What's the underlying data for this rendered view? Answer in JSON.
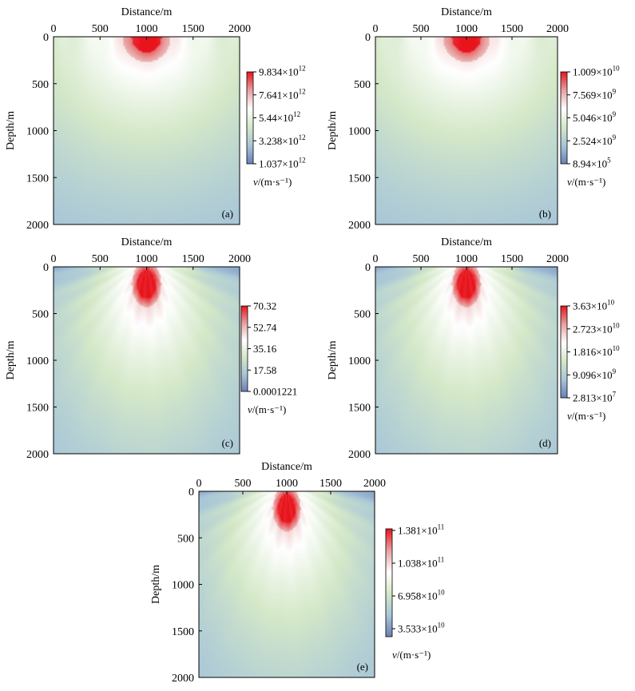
{
  "chart_data": [
    {
      "type": "heatmap",
      "xlabel": "Distance/m",
      "ylabel": "Depth/m",
      "x_ticks": [
        "0",
        "500",
        "1000",
        "1500",
        "2000"
      ],
      "y_ticks": [
        "0",
        "500",
        "1000",
        "1500",
        "2000"
      ],
      "xlim": [
        0,
        2000
      ],
      "ylim": [
        0,
        2000
      ],
      "panel_label": "(a)",
      "colorbar_label": "v/(m·s⁻¹)",
      "colorbar": {
        "ticks": [
          {
            "man": "9.834×10",
            "exp": "12",
            "value": 9834000000000.0
          },
          {
            "man": "7.641×10",
            "exp": "12",
            "value": 7641000000000.0
          },
          {
            "man": "5.44×10",
            "exp": "12",
            "value": 5440000000000.0
          },
          {
            "man": "3.238×10",
            "exp": "12",
            "value": 3238000000000.0
          },
          {
            "man": "1.037×10",
            "exp": "12",
            "value": 1037000000000.0
          }
        ]
      },
      "source": {
        "x": 1000,
        "depth": 0,
        "shape": "shallow"
      }
    },
    {
      "type": "heatmap",
      "xlabel": "Distance/m",
      "ylabel": "Depth/m",
      "x_ticks": [
        "0",
        "500",
        "1000",
        "1500",
        "2000"
      ],
      "y_ticks": [
        "0",
        "500",
        "1000",
        "1500",
        "2000"
      ],
      "xlim": [
        0,
        2000
      ],
      "ylim": [
        0,
        2000
      ],
      "panel_label": "(b)",
      "colorbar_label": "v/(m·s⁻¹)",
      "colorbar": {
        "ticks": [
          {
            "man": "1.009×10",
            "exp": "10",
            "value": 10090000000.0
          },
          {
            "man": "7.569×10",
            "exp": "9",
            "value": 7569000000.0
          },
          {
            "man": "5.046×10",
            "exp": "9",
            "value": 5046000000.0
          },
          {
            "man": "2.524×10",
            "exp": "9",
            "value": 2524000000.0
          },
          {
            "man": "8.94×10",
            "exp": "5",
            "value": 894000.0
          }
        ]
      },
      "source": {
        "x": 1000,
        "depth": 0,
        "shape": "shallow"
      }
    },
    {
      "type": "heatmap",
      "xlabel": "Distance/m",
      "ylabel": "Depth/m",
      "x_ticks": [
        "0",
        "500",
        "1000",
        "1500",
        "2000"
      ],
      "y_ticks": [
        "0",
        "500",
        "1000",
        "1500",
        "2000"
      ],
      "xlim": [
        0,
        2000
      ],
      "ylim": [
        0,
        2000
      ],
      "panel_label": "(c)",
      "colorbar_label": "v/(m·s⁻¹)",
      "colorbar": {
        "ticks": [
          {
            "man": "70.32",
            "exp": "",
            "value": 70.32
          },
          {
            "man": "52.74",
            "exp": "",
            "value": 52.74
          },
          {
            "man": "35.16",
            "exp": "",
            "value": 35.16
          },
          {
            "man": "17.58",
            "exp": "",
            "value": 17.58
          },
          {
            "man": "0.0001221",
            "exp": "",
            "value": 0.0001221
          }
        ]
      },
      "source": {
        "x": 1000,
        "depth": 200,
        "shape": "deep"
      }
    },
    {
      "type": "heatmap",
      "xlabel": "Distance/m",
      "ylabel": "Depth/m",
      "x_ticks": [
        "0",
        "500",
        "1000",
        "1500",
        "2000"
      ],
      "y_ticks": [
        "0",
        "500",
        "1000",
        "1500",
        "2000"
      ],
      "xlim": [
        0,
        2000
      ],
      "ylim": [
        0,
        2000
      ],
      "panel_label": "(d)",
      "colorbar_label": "v/(m·s⁻¹)",
      "colorbar": {
        "ticks": [
          {
            "man": "3.63×10",
            "exp": "10",
            "value": 36300000000.0
          },
          {
            "man": "2.723×10",
            "exp": "10",
            "value": 27230000000.0
          },
          {
            "man": "1.816×10",
            "exp": "10",
            "value": 18160000000.0
          },
          {
            "man": "9.096×10",
            "exp": "9",
            "value": 9096000000.0
          },
          {
            "man": "2.813×10",
            "exp": "7",
            "value": 28130000.0
          }
        ]
      },
      "source": {
        "x": 1000,
        "depth": 200,
        "shape": "deep"
      }
    },
    {
      "type": "heatmap",
      "xlabel": "Distance/m",
      "ylabel": "Depth/m",
      "x_ticks": [
        "0",
        "500",
        "1000",
        "1500",
        "2000"
      ],
      "y_ticks": [
        "0",
        "500",
        "1000",
        "1500",
        "2000"
      ],
      "xlim": [
        0,
        2000
      ],
      "ylim": [
        0,
        2000
      ],
      "panel_label": "(e)",
      "colorbar_label": "v/(m·s⁻¹)",
      "colorbar": {
        "ticks": [
          {
            "man": "1.381×10",
            "exp": "11",
            "value": 138100000000.0
          },
          {
            "man": "1.038×10",
            "exp": "11",
            "value": 103800000000.0
          },
          {
            "man": "6.958×10",
            "exp": "10",
            "value": 69580000000.0
          },
          {
            "man": "3.533×10",
            "exp": "10",
            "value": 35330000000.0
          }
        ]
      },
      "source": {
        "x": 1000,
        "depth": 200,
        "shape": "deep"
      }
    }
  ],
  "colormap": [
    "#6a7fb8",
    "#a8c6d8",
    "#d4e8c8",
    "#ffffff",
    "#e8a0a0",
    "#e8141c"
  ]
}
